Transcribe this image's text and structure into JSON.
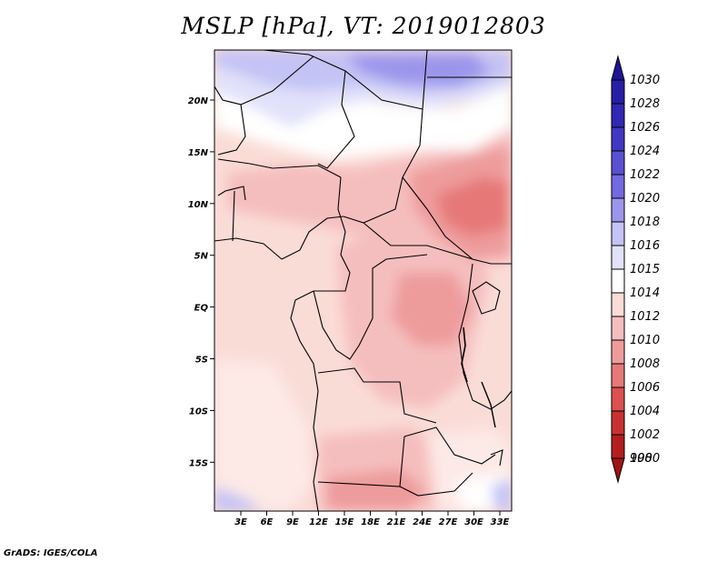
{
  "title": "MSLP [hPa], VT: 2019012803",
  "credit": "GrADS: IGES/COLA",
  "map": {
    "y_axis_labels": [
      "20N",
      "15N",
      "10N",
      "5N",
      "EQ",
      "5S",
      "10S",
      "15S"
    ],
    "x_axis_labels": [
      "3E",
      "6E",
      "9E",
      "12E",
      "15E",
      "18E",
      "21E",
      "24E",
      "27E",
      "30E",
      "33E"
    ]
  },
  "colorbar": {
    "levels": [
      {
        "label": "1030",
        "color": "#1e1496"
      },
      {
        "label": "1028",
        "color": "#281ea5"
      },
      {
        "label": "1026",
        "color": "#3228b4"
      },
      {
        "label": "1024",
        "color": "#4137c3"
      },
      {
        "label": "1022",
        "color": "#5a50d2"
      },
      {
        "label": "1020",
        "color": "#7369e1"
      },
      {
        "label": "1018",
        "color": "#9b96eb"
      },
      {
        "label": "1016",
        "color": "#c3c3f5"
      },
      {
        "label": "1015",
        "color": "#e1e1fa"
      },
      {
        "label": "1014",
        "color": "#ffffff"
      },
      {
        "label": "1012",
        "color": "#fadcd7"
      },
      {
        "label": "1010",
        "color": "#f5bebe"
      },
      {
        "label": "1008",
        "color": "#ee9b9b"
      },
      {
        "label": "1006",
        "color": "#e67878"
      },
      {
        "label": "1004",
        "color": "#dc5050"
      },
      {
        "label": "1002",
        "color": "#c83232"
      },
      {
        "label": "1000",
        "color": "#b41e1e"
      },
      {
        "label": "998",
        "color": "#a01414"
      }
    ]
  }
}
